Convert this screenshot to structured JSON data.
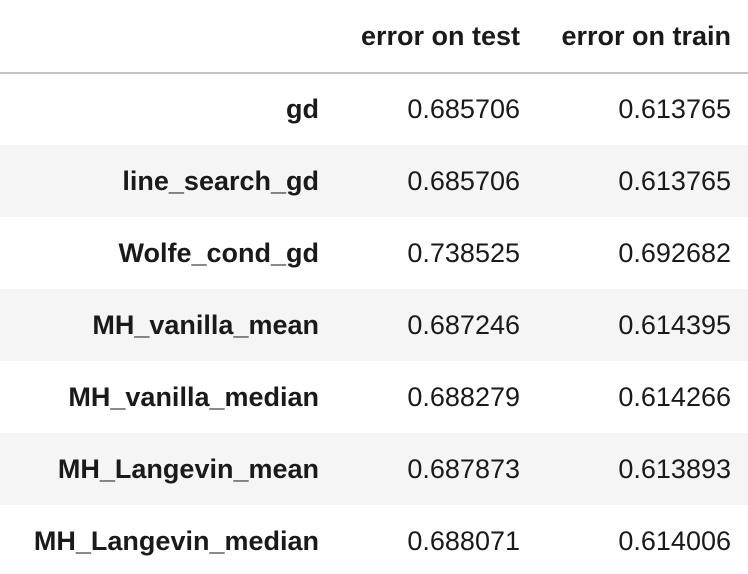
{
  "table": {
    "columns": [
      "",
      "error on test",
      "error on train"
    ],
    "rows": [
      {
        "label": "gd",
        "test": "0.685706",
        "train": "0.613765"
      },
      {
        "label": "line_search_gd",
        "test": "0.685706",
        "train": "0.613765"
      },
      {
        "label": "Wolfe_cond_gd",
        "test": "0.738525",
        "train": "0.692682"
      },
      {
        "label": "MH_vanilla_mean",
        "test": "0.687246",
        "train": "0.614395"
      },
      {
        "label": "MH_vanilla_median",
        "test": "0.688279",
        "train": "0.614266"
      },
      {
        "label": "MH_Langevin_mean",
        "test": "0.687873",
        "train": "0.613893"
      },
      {
        "label": "MH_Langevin_median",
        "test": "0.688071",
        "train": "0.614006"
      }
    ]
  }
}
